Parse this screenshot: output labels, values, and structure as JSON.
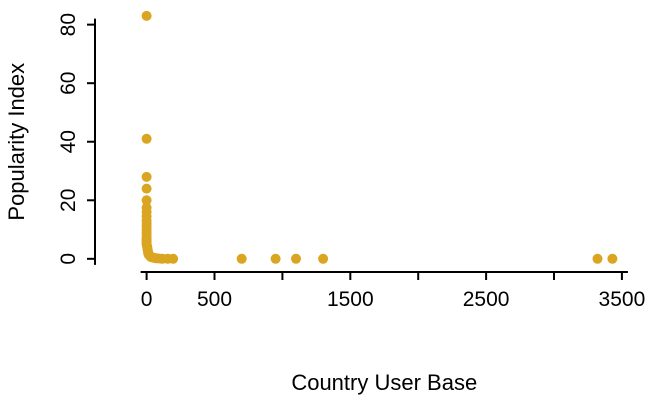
{
  "chart_data": {
    "type": "scatter",
    "title": "",
    "xlabel": "Country User Base",
    "ylabel": "Popularity Index",
    "xlim": [
      -380,
      3670
    ],
    "ylim": [
      -4.5,
      85
    ],
    "x_tick_values": [
      0,
      500,
      1000,
      1500,
      2000,
      2500,
      3000,
      3500
    ],
    "x_tick_labels": [
      "0",
      "500",
      "",
      "1500",
      "",
      "2500",
      "",
      "3500"
    ],
    "y_tick_values": [
      0,
      20,
      40,
      60,
      80
    ],
    "y_tick_labels": [
      "0",
      "20",
      "40",
      "60",
      "80"
    ],
    "grid": "off",
    "legend": "none",
    "point_color": "#DAA520",
    "point_radius": 5,
    "axis_color": "#000000",
    "background_color": "#ffffff",
    "points": [
      [
        0,
        83
      ],
      [
        0,
        41
      ],
      [
        0,
        28
      ],
      [
        0,
        24
      ],
      [
        0,
        20
      ],
      [
        0,
        17.5
      ],
      [
        0,
        16
      ],
      [
        0,
        14.5
      ],
      [
        0,
        13
      ],
      [
        0,
        12
      ],
      [
        0,
        11
      ],
      [
        0,
        10
      ],
      [
        0,
        9
      ],
      [
        0,
        8
      ],
      [
        0,
        7
      ],
      [
        0,
        6.5
      ],
      [
        0,
        6
      ],
      [
        0,
        5.5
      ],
      [
        0,
        5
      ],
      [
        3,
        4.5
      ],
      [
        5,
        4
      ],
      [
        6,
        3.5
      ],
      [
        8,
        3
      ],
      [
        10,
        2.5
      ],
      [
        12,
        2
      ],
      [
        15,
        1.5
      ],
      [
        20,
        1.2
      ],
      [
        25,
        1
      ],
      [
        30,
        0.7
      ],
      [
        40,
        0.5
      ],
      [
        55,
        0.3
      ],
      [
        70,
        0.2
      ],
      [
        90,
        0.1
      ],
      [
        115,
        0
      ],
      [
        155,
        0
      ],
      [
        195,
        0
      ],
      [
        700,
        0
      ],
      [
        950,
        0
      ],
      [
        1100,
        0
      ],
      [
        1300,
        0
      ],
      [
        3320,
        0
      ],
      [
        3430,
        0
      ]
    ]
  }
}
